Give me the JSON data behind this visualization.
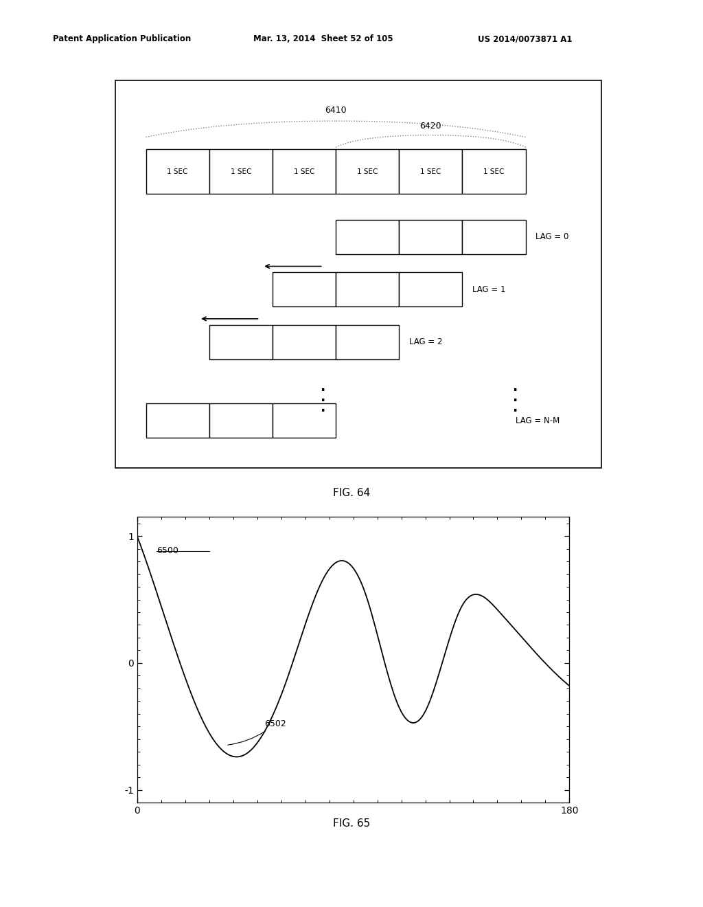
{
  "header_left": "Patent Application Publication",
  "header_mid": "Mar. 13, 2014  Sheet 52 of 105",
  "header_right": "US 2014/0073871 A1",
  "fig64_label": "FIG. 64",
  "fig65_label": "FIG. 65",
  "label_6410": "6410",
  "label_6420": "6420",
  "sec_labels": [
    "1 SEC",
    "1 SEC",
    "1 SEC",
    "1 SEC",
    "1 SEC",
    "1 SEC"
  ],
  "annotation_6500": "6500",
  "annotation_6502": "6502",
  "bg_color": "#ffffff"
}
